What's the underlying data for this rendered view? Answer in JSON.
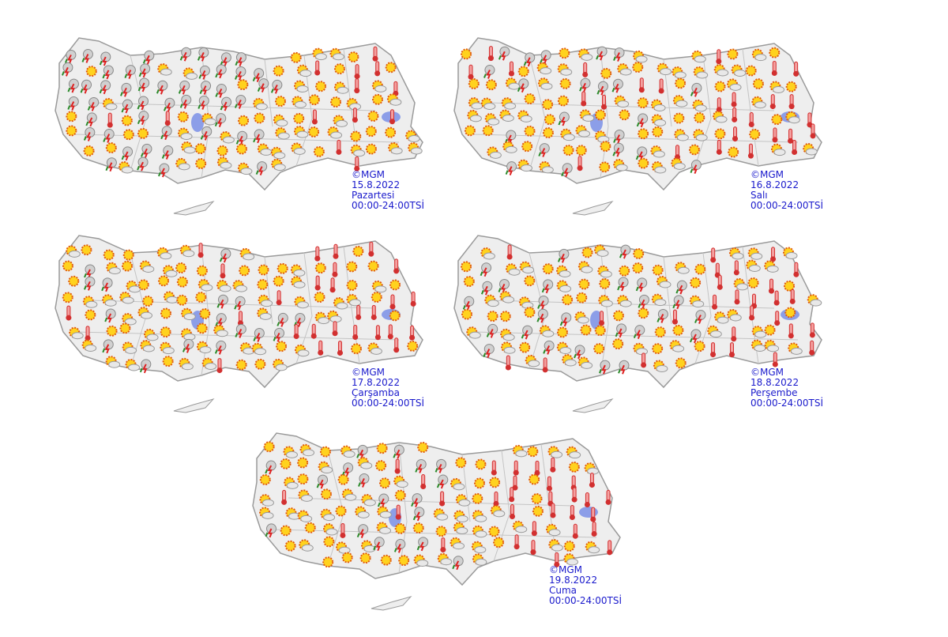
{
  "panels": [
    {
      "credit": "©MGM",
      "date": "15.8.2022",
      "day": "Pazartesi",
      "time": "00:00-24:00TSİ"
    },
    {
      "credit": "©MGM",
      "date": "16.8.2022",
      "day": "Salı",
      "time": "00:00-24:00TSİ"
    },
    {
      "credit": "©MGM",
      "date": "17.8.2022",
      "day": "Çarşamba",
      "time": "00:00-24:00TSİ"
    },
    {
      "credit": "©MGM",
      "date": "18.8.2022",
      "day": "Perşembe",
      "time": "00:00-24:00TSİ"
    },
    {
      "credit": "©MGM",
      "date": "19.8.2022",
      "day": "Cuma",
      "time": "00:00-24:00TSİ"
    }
  ]
}
